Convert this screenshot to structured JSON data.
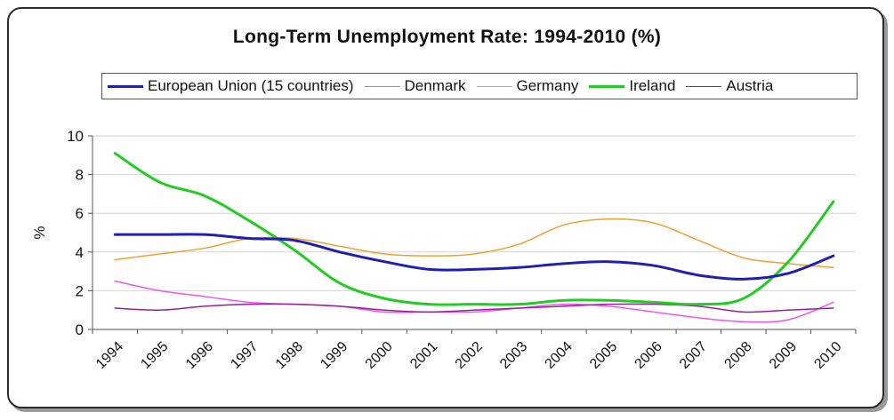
{
  "chart_data": {
    "type": "line",
    "title": "Long-Term Unemployment Rate:  1994-2010 (%)",
    "xlabel": "",
    "ylabel": "%",
    "ylim": [
      0,
      10
    ],
    "yticks": [
      0,
      2,
      4,
      6,
      8,
      10
    ],
    "grid": "horizontal",
    "legend_position": "top",
    "x": [
      "1994",
      "1995",
      "1996",
      "1997",
      "1998",
      "1999",
      "2000",
      "2001",
      "2002",
      "2003",
      "2004",
      "2005",
      "2006",
      "2007",
      "2008",
      "2009",
      "2010"
    ],
    "series": [
      {
        "name": "European Union (15 countries)",
        "color": "#1f1fb4",
        "width": 3,
        "values": [
          4.9,
          4.9,
          4.9,
          4.7,
          4.6,
          4.0,
          3.5,
          3.1,
          3.1,
          3.2,
          3.4,
          3.5,
          3.3,
          2.8,
          2.6,
          2.9,
          3.8
        ]
      },
      {
        "name": "Denmark",
        "color": "#ee55ee",
        "width": 1.5,
        "values": [
          2.5,
          2.0,
          1.7,
          1.4,
          1.3,
          1.2,
          0.9,
          0.9,
          0.9,
          1.1,
          1.3,
          1.2,
          0.9,
          0.6,
          0.4,
          0.5,
          1.4
        ]
      },
      {
        "name": "Germany",
        "color": "#f0a030",
        "width": 1.5,
        "values": [
          3.6,
          3.9,
          4.2,
          4.7,
          4.7,
          4.3,
          3.9,
          3.8,
          3.9,
          4.4,
          5.4,
          5.7,
          5.5,
          4.6,
          3.7,
          3.4,
          3.2
        ]
      },
      {
        "name": "Ireland",
        "color": "#22cc22",
        "width": 3,
        "values": [
          9.1,
          7.6,
          6.9,
          5.6,
          4.1,
          2.4,
          1.6,
          1.3,
          1.3,
          1.3,
          1.5,
          1.5,
          1.4,
          1.3,
          1.6,
          3.5,
          6.6
        ]
      },
      {
        "name": "Austria",
        "color": "#991f99",
        "width": 1.5,
        "values": [
          1.1,
          1.0,
          1.2,
          1.3,
          1.3,
          1.2,
          1.0,
          0.9,
          1.0,
          1.1,
          1.2,
          1.3,
          1.3,
          1.2,
          0.9,
          1.0,
          1.1
        ]
      }
    ]
  }
}
